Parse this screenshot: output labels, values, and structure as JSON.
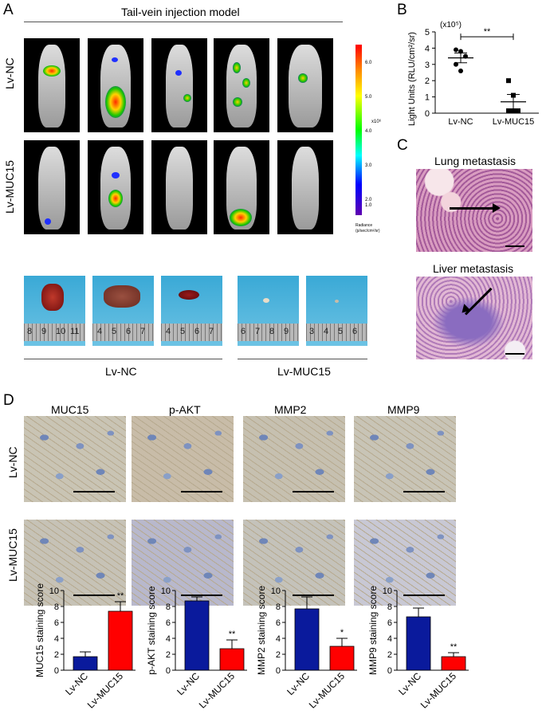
{
  "panels": {
    "A": "A",
    "B": "B",
    "C": "C",
    "D": "D"
  },
  "panelA": {
    "model_title": "Tail-vein injection model",
    "row_labels": [
      "Lv-NC",
      "Lv-MUC15"
    ],
    "colorbar": {
      "ticks": [
        "6.0",
        "5.0",
        "4.0",
        "3.0",
        "2.0",
        "1.0"
      ],
      "exponent": "x10⁶",
      "units_line1": "Radiance",
      "units_line2": "(p/sec/cm²/sr)"
    },
    "organ_groups": [
      "Lv-NC",
      "Lv-MUC15"
    ],
    "ruler_numbers": [
      [
        "8",
        "9",
        "10",
        "11"
      ],
      [
        "4",
        "5",
        "6",
        "7"
      ],
      [
        "4",
        "5",
        "6",
        "7"
      ],
      [
        "6",
        "7",
        "8",
        "9"
      ],
      [
        "3",
        "4",
        "5",
        "6"
      ]
    ]
  },
  "panelC": {
    "titles": [
      "Lung metastasis",
      "Liver metastasis"
    ]
  },
  "panelD": {
    "stain_headers": [
      "MUC15",
      "p-AKT",
      "MMP2",
      "MMP9"
    ],
    "row_labels": [
      "Lv-NC",
      "Lv-MUC15"
    ]
  },
  "colors": {
    "nc": "#0a1a9c",
    "muc15": "#ff0000"
  },
  "chart_data": [
    {
      "type": "scatter",
      "panel": "B",
      "ylabel": "Light Units (RLU/cm²/sr)",
      "y_multiplier": "(x10⁵)",
      "categories": [
        "Lv-NC",
        "Lv-MUC15"
      ],
      "points": {
        "Lv-NC": [
          3.9,
          3.8,
          3.5,
          3.0,
          2.6
        ],
        "Lv-MUC15": [
          2.0,
          1.1,
          0.0,
          0.0,
          0.0
        ]
      },
      "means": [
        3.4,
        0.7
      ],
      "sem": [
        0.3,
        0.45
      ],
      "ylim": [
        0,
        5
      ],
      "yticks": [
        0,
        1,
        2,
        3,
        4,
        5
      ],
      "significance": "**"
    },
    {
      "type": "bar",
      "panel": "D",
      "ylabel": "MUC15 staining score",
      "categories": [
        "Lv-NC",
        "Lv-MUC15"
      ],
      "values": [
        1.7,
        7.4
      ],
      "errors": [
        0.6,
        1.2
      ],
      "ylim": [
        0,
        10
      ],
      "yticks": [
        0,
        2,
        4,
        6,
        8,
        10
      ],
      "significance": "**"
    },
    {
      "type": "bar",
      "panel": "D",
      "ylabel": "p-AKT staining score",
      "categories": [
        "Lv-NC",
        "Lv-MUC15"
      ],
      "values": [
        8.7,
        2.7
      ],
      "errors": [
        0.5,
        1.1
      ],
      "ylim": [
        0,
        10
      ],
      "yticks": [
        0,
        2,
        4,
        6,
        8,
        10
      ],
      "significance": "**"
    },
    {
      "type": "bar",
      "panel": "D",
      "ylabel": "MMP2 staining score",
      "categories": [
        "Lv-NC",
        "Lv-MUC15"
      ],
      "values": [
        7.7,
        3.0
      ],
      "errors": [
        1.5,
        1.0
      ],
      "ylim": [
        0,
        10
      ],
      "yticks": [
        0,
        2,
        4,
        6,
        8,
        10
      ],
      "significance": "*"
    },
    {
      "type": "bar",
      "panel": "D",
      "ylabel": "MMP9 staining score",
      "categories": [
        "Lv-NC",
        "Lv-MUC15"
      ],
      "values": [
        6.7,
        1.7
      ],
      "errors": [
        1.1,
        0.5
      ],
      "ylim": [
        0,
        10
      ],
      "yticks": [
        0,
        2,
        4,
        6,
        8,
        10
      ],
      "significance": "**"
    }
  ]
}
